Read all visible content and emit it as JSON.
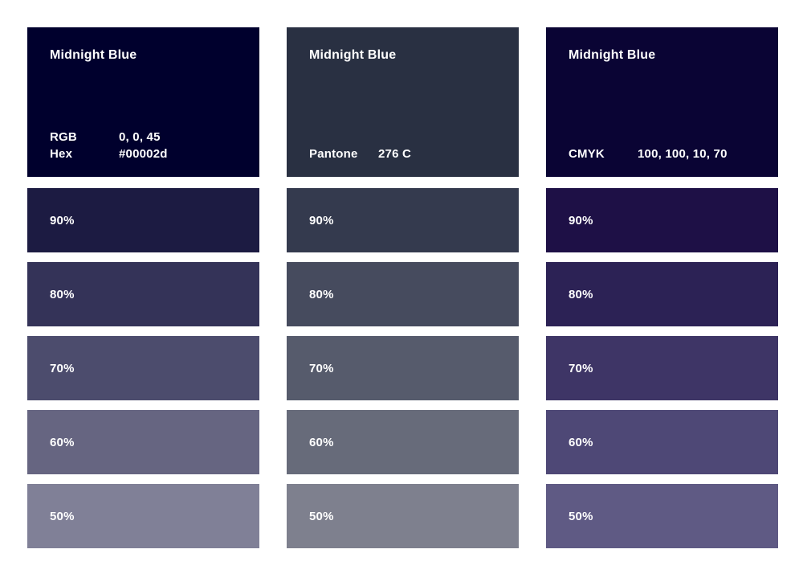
{
  "page": {
    "background": "#ffffff",
    "text_color": "#ffffff"
  },
  "columns": [
    {
      "name": "Midnight Blue",
      "base_color": "#00002d",
      "specs": [
        {
          "label": "RGB",
          "value": "0, 0, 45"
        },
        {
          "label": "Hex",
          "value": "#00002d"
        }
      ],
      "tints": [
        {
          "label": "90%",
          "color": "#1c1b42"
        },
        {
          "label": "80%",
          "color": "#343358"
        },
        {
          "label": "70%",
          "color": "#4c4c6d"
        },
        {
          "label": "60%",
          "color": "#666581"
        },
        {
          "label": "50%",
          "color": "#808097"
        }
      ]
    },
    {
      "name": "Midnight Blue",
      "base_color": "#293042",
      "specs": [
        {
          "label": "Pantone",
          "value": "276 C"
        }
      ],
      "tints": [
        {
          "label": "90%",
          "color": "#343a4e"
        },
        {
          "label": "80%",
          "color": "#464b5e"
        },
        {
          "label": "70%",
          "color": "#565b6c"
        },
        {
          "label": "60%",
          "color": "#676b7a"
        },
        {
          "label": "50%",
          "color": "#7e808e"
        }
      ]
    },
    {
      "name": "Midnight Blue",
      "base_color": "#0a0434",
      "specs": [
        {
          "label": "CMYK",
          "value": "100, 100, 10, 70"
        }
      ],
      "tints": [
        {
          "label": "90%",
          "color": "#1e1046"
        },
        {
          "label": "80%",
          "color": "#2c2255"
        },
        {
          "label": "70%",
          "color": "#3e3566"
        },
        {
          "label": "60%",
          "color": "#4e4876"
        },
        {
          "label": "50%",
          "color": "#5f5a84"
        }
      ]
    }
  ]
}
